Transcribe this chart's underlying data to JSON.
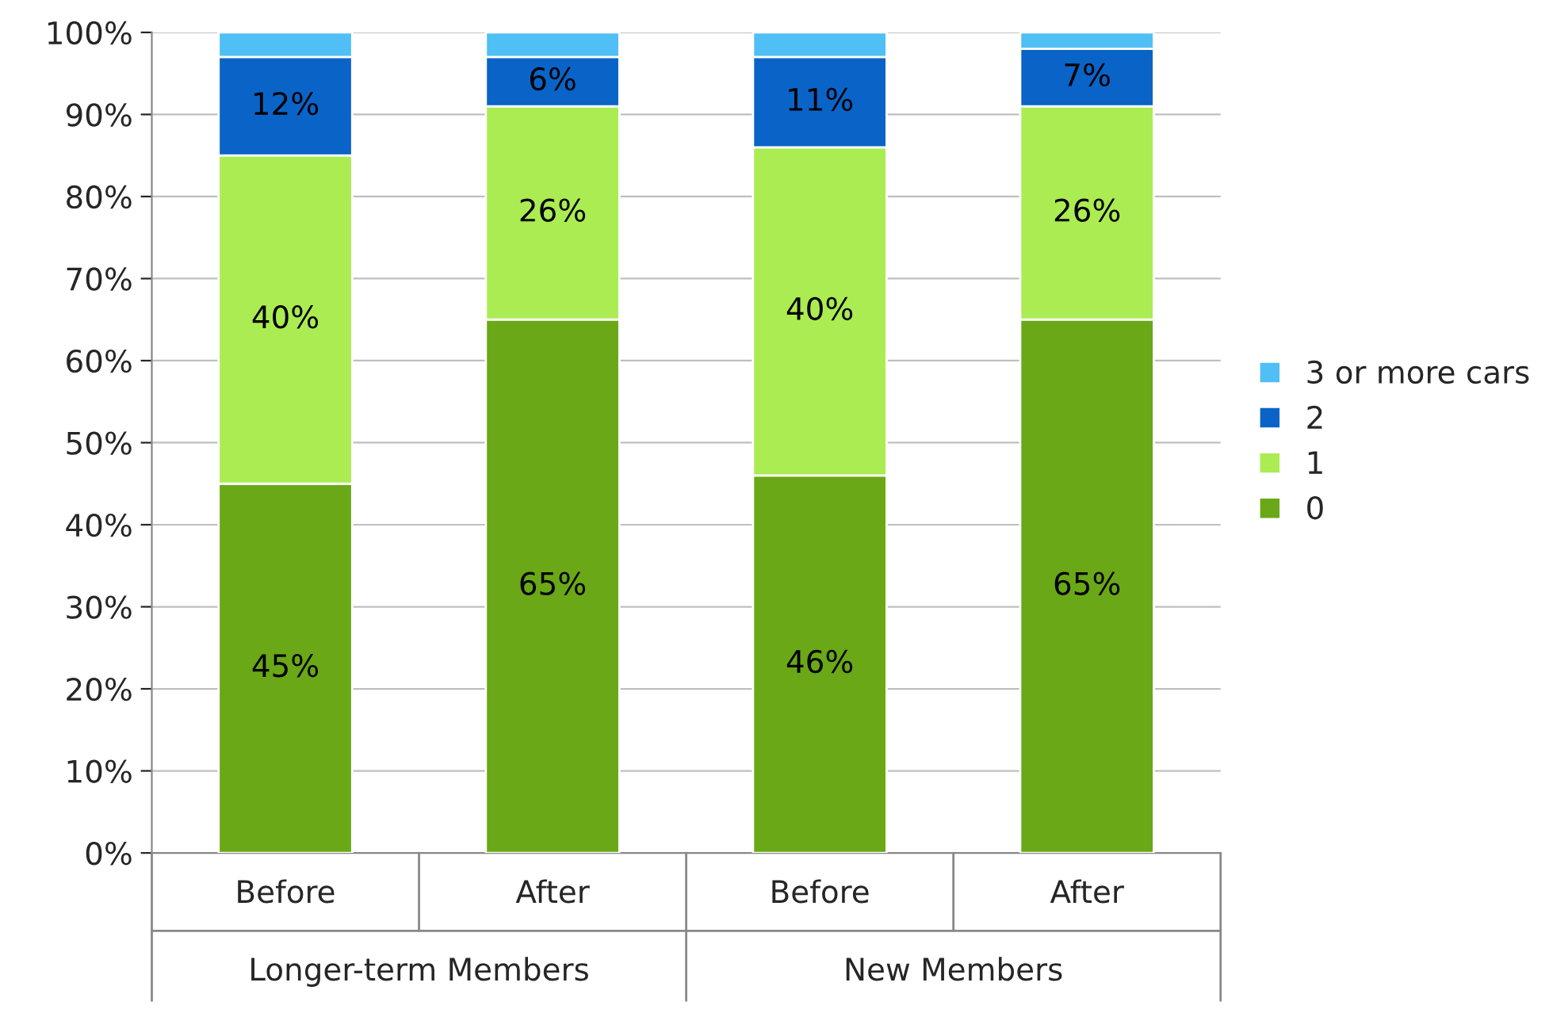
{
  "chart_data": {
    "type": "bar",
    "stacked": true,
    "categories": [
      "Before",
      "After",
      "Before",
      "After"
    ],
    "series": [
      {
        "name": "0",
        "color": "#6aa817",
        "values": [
          45,
          65,
          46,
          65
        ],
        "value_labels": [
          "45%",
          "65%",
          "46%",
          "65%"
        ]
      },
      {
        "name": "1",
        "color": "#abec52",
        "values": [
          40,
          26,
          40,
          26
        ],
        "value_labels": [
          "40%",
          "26%",
          "40%",
          "26%"
        ]
      },
      {
        "name": "2",
        "color": "#0a64c8",
        "values": [
          12,
          6,
          11,
          7
        ],
        "value_labels": [
          "12%",
          "6%",
          "11%",
          "7%"
        ]
      },
      {
        "name": "3 or more cars",
        "color": "#4fbff5",
        "values": [
          3,
          3,
          3,
          2
        ]
      }
    ],
    "ylim": [
      0,
      100
    ],
    "yticks": [
      {
        "value": 0,
        "label": "0%"
      },
      {
        "value": 10,
        "label": "10%"
      },
      {
        "value": 20,
        "label": "20%"
      },
      {
        "value": 30,
        "label": "30%"
      },
      {
        "value": 40,
        "label": "40%"
      },
      {
        "value": 50,
        "label": "50%"
      },
      {
        "value": 60,
        "label": "60%"
      },
      {
        "value": 70,
        "label": "70%"
      },
      {
        "value": 80,
        "label": "80%"
      },
      {
        "value": 90,
        "label": "90%"
      },
      {
        "value": 100,
        "label": "100%"
      }
    ],
    "grid": "y",
    "legend": "right",
    "annotations": [
      "Longer-term Members",
      "New Members"
    ]
  }
}
